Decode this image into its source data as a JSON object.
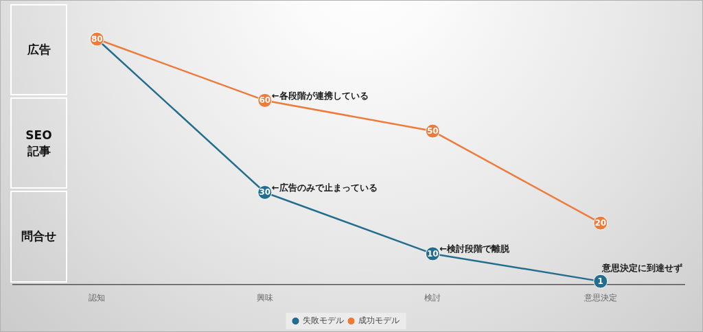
{
  "chart_data": {
    "type": "line",
    "categories": [
      "認知",
      "興味",
      "検討",
      "意思決定"
    ],
    "series": [
      {
        "name": "失敗モデル",
        "color": "#236e8e",
        "values": [
          80,
          30,
          10,
          1
        ],
        "value_labels": [
          null,
          "30",
          "10",
          "1"
        ]
      },
      {
        "name": "成功モデル",
        "color": "#ee7b3a",
        "values": [
          80,
          60,
          50,
          20
        ],
        "value_labels": [
          "80",
          "60",
          "50",
          "20"
        ]
      }
    ],
    "tick_labels": "x",
    "marker": "circle",
    "line_style": "solid",
    "legend": "bottom",
    "grid": false,
    "annotations": [
      "広告",
      "SEO 記事",
      "問合せ",
      {
        "text": "←各段階が連携している",
        "x": "興味",
        "y": 60
      },
      {
        "text": "←広告のみで止まっている",
        "x": "興味",
        "y": 30
      },
      {
        "text": "←検討段階で離脱",
        "x": "検討",
        "y": 10
      },
      {
        "text": "意思決定に到達せず",
        "x": "意思決定",
        "y": 1
      }
    ]
  }
}
